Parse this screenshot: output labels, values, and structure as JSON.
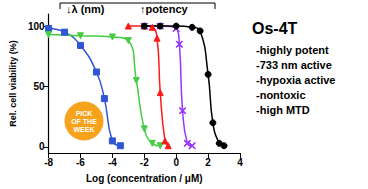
{
  "chart_data": {
    "type": "line",
    "x_label": "Log (concentration / μM)",
    "y_label": "Rel. cell viability (%)",
    "xlim": [
      -8,
      4
    ],
    "xticks": [
      -8,
      -6,
      -4,
      -2,
      0,
      2,
      4
    ],
    "ylim": [
      -5,
      110
    ],
    "yticks": [
      0,
      50,
      100
    ],
    "grid": false,
    "annotations": {
      "top": [
        "↓λ (nm)",
        "↑potency"
      ],
      "title": "Os-4T",
      "notes": [
        "-highly potent",
        "-733 nm active",
        "-hypoxia active",
        "-nontoxic",
        "-high MTD"
      ],
      "badge": [
        "PICK",
        "OF THE",
        "WEEK"
      ]
    },
    "series": [
      {
        "color": "#2f55d4",
        "marker": "square",
        "x": [
          -8,
          -7,
          -6,
          -5,
          -4.5,
          -4,
          -3.5
        ],
        "values": [
          98,
          95,
          84,
          62,
          40,
          5,
          1
        ]
      },
      {
        "color": "#44cc44",
        "marker": "triangle-down",
        "x": [
          -8,
          -6,
          -4,
          -3,
          -2.5,
          -2,
          -1.5,
          -1
        ],
        "values": [
          93,
          92,
          91,
          88,
          55,
          15,
          3,
          1
        ]
      },
      {
        "color": "#ff1a1a",
        "marker": "triangle",
        "x": [
          -3,
          -2,
          -1.5,
          -1.2,
          -1,
          -0.7,
          -0.5
        ],
        "values": [
          100,
          100,
          99,
          90,
          45,
          5,
          1
        ]
      },
      {
        "color": "#9933ff",
        "marker": "x",
        "x": [
          -2,
          -1,
          0,
          0.2,
          0.4,
          0.7,
          1
        ],
        "values": [
          100,
          100,
          98,
          85,
          30,
          3,
          1
        ]
      },
      {
        "color": "#000000",
        "marker": "circle",
        "x": [
          -2,
          -1,
          0,
          1,
          1.5,
          2,
          2.3,
          2.7,
          3
        ],
        "values": [
          100,
          100,
          100,
          99,
          96,
          60,
          20,
          3,
          1
        ]
      }
    ]
  }
}
